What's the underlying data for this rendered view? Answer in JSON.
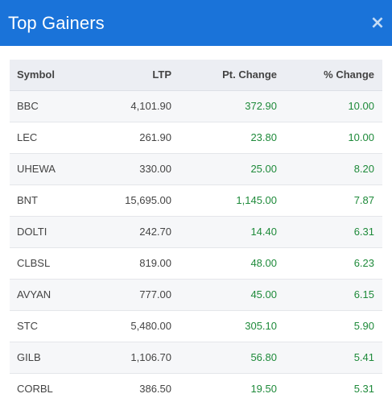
{
  "modal": {
    "title": "Top Gainers",
    "close_icon": "close-icon",
    "close_glyph": "×"
  },
  "table": {
    "headers": {
      "symbol": "Symbol",
      "ltp": "LTP",
      "pt_change": "Pt. Change",
      "pct_change": "% Change"
    },
    "rows": [
      {
        "symbol": "BBC",
        "ltp": "4,101.90",
        "pt_change": "372.90",
        "pct_change": "10.00"
      },
      {
        "symbol": "LEC",
        "ltp": "261.90",
        "pt_change": "23.80",
        "pct_change": "10.00"
      },
      {
        "symbol": "UHEWA",
        "ltp": "330.00",
        "pt_change": "25.00",
        "pct_change": "8.20"
      },
      {
        "symbol": "BNT",
        "ltp": "15,695.00",
        "pt_change": "1,145.00",
        "pct_change": "7.87"
      },
      {
        "symbol": "DOLTI",
        "ltp": "242.70",
        "pt_change": "14.40",
        "pct_change": "6.31"
      },
      {
        "symbol": "CLBSL",
        "ltp": "819.00",
        "pt_change": "48.00",
        "pct_change": "6.23"
      },
      {
        "symbol": "AVYAN",
        "ltp": "777.00",
        "pt_change": "45.00",
        "pct_change": "6.15"
      },
      {
        "symbol": "STC",
        "ltp": "5,480.00",
        "pt_change": "305.10",
        "pct_change": "5.90"
      },
      {
        "symbol": "GILB",
        "ltp": "1,106.70",
        "pt_change": "56.80",
        "pct_change": "5.41"
      },
      {
        "symbol": "CORBL",
        "ltp": "386.50",
        "pt_change": "19.50",
        "pct_change": "5.31"
      }
    ]
  },
  "colors": {
    "header_bg": "#1a73d9",
    "positive": "#1e8a3a",
    "table_header_bg": "#eceef3"
  }
}
